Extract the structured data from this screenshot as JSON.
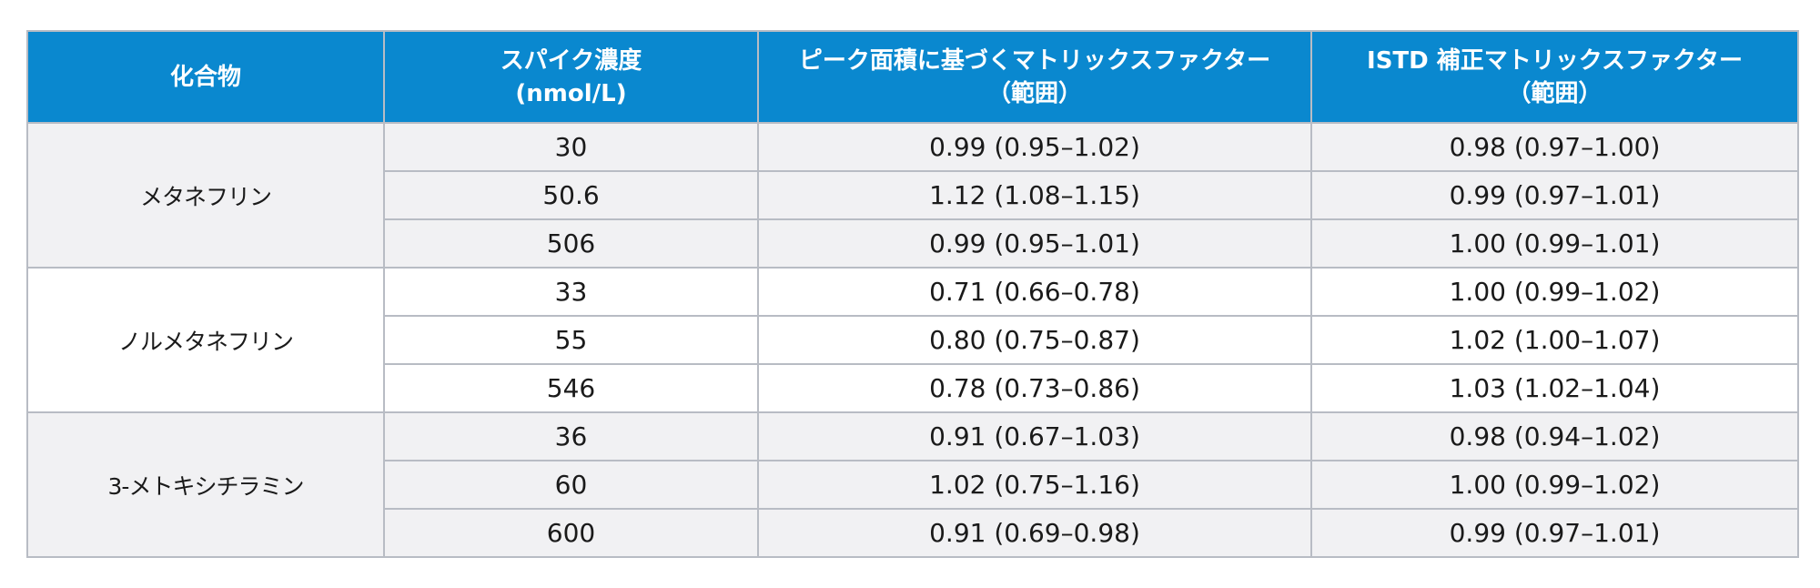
{
  "table": {
    "headers": [
      {
        "lines": [
          "化合物"
        ]
      },
      {
        "lines": [
          "スパイク濃度",
          "(nmol/L)"
        ]
      },
      {
        "lines": [
          "ピーク面積に基づくマトリックスファクター",
          "（範囲）"
        ]
      },
      {
        "lines": [
          "ISTD 補正マトリックスファクター",
          "（範囲）"
        ]
      }
    ],
    "groups": [
      {
        "compound": "メタネフリン",
        "rows": [
          {
            "spike": "30",
            "peak_mf": "0.99 (0.95–1.02)",
            "istd_mf": "0.98 (0.97–1.00)"
          },
          {
            "spike": "50.6",
            "peak_mf": "1.12 (1.08–1.15)",
            "istd_mf": "0.99 (0.97–1.01)"
          },
          {
            "spike": "506",
            "peak_mf": "0.99 (0.95–1.01)",
            "istd_mf": "1.00 (0.99–1.01)"
          }
        ]
      },
      {
        "compound": "ノルメタネフリン",
        "rows": [
          {
            "spike": "33",
            "peak_mf": "0.71 (0.66–0.78)",
            "istd_mf": "1.00 (0.99–1.02)"
          },
          {
            "spike": "55",
            "peak_mf": "0.80 (0.75–0.87)",
            "istd_mf": "1.02 (1.00–1.07)"
          },
          {
            "spike": "546",
            "peak_mf": "0.78 (0.73–0.86)",
            "istd_mf": "1.03 (1.02–1.04)"
          }
        ]
      },
      {
        "compound": "3-メトキシチラミン",
        "rows": [
          {
            "spike": "36",
            "peak_mf": "0.91 (0.67–1.03)",
            "istd_mf": "0.98 (0.94–1.02)"
          },
          {
            "spike": "60",
            "peak_mf": "1.02 (0.75–1.16)",
            "istd_mf": "1.00 (0.99–1.02)"
          },
          {
            "spike": "600",
            "peak_mf": "0.91 (0.69–0.98)",
            "istd_mf": "0.99 (0.97–1.01)"
          }
        ]
      }
    ]
  },
  "colors": {
    "header_bg": "#0a88cf",
    "header_text": "#ffffff",
    "band_gray": "#f1f1f3",
    "band_white": "#ffffff",
    "grid": "#b8bcc4"
  }
}
